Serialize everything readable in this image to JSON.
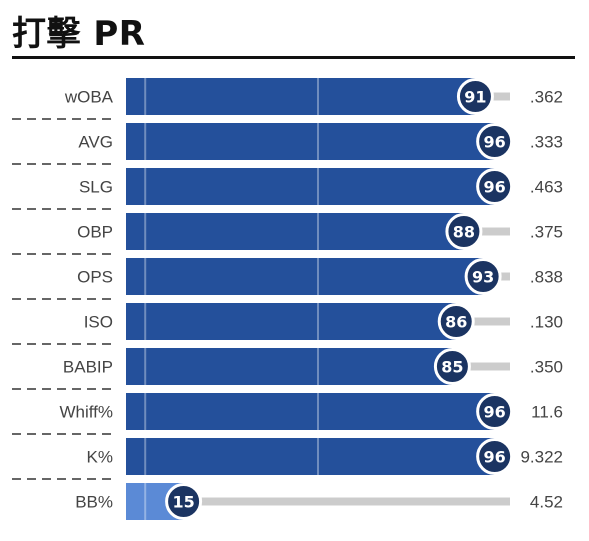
{
  "title": "打擊 PR",
  "chart_data": {
    "type": "bar",
    "orientation": "horizontal",
    "title": "打擊 PR",
    "xlim": [
      0,
      100
    ],
    "categories": [
      "wOBA",
      "AVG",
      "SLG",
      "OBP",
      "OPS",
      "ISO",
      "BABIP",
      "Whiff%",
      "K%",
      "BB%"
    ],
    "percentiles": [
      91,
      96,
      96,
      88,
      93,
      86,
      85,
      96,
      96,
      15
    ],
    "stat_values": [
      ".362",
      ".333",
      ".463",
      ".375",
      ".838",
      ".130",
      ".350",
      "11.6",
      "9.322",
      "4.52"
    ],
    "colors": {
      "bar_high": "#24509b",
      "bar_low": "#5b8ad6",
      "badge": "#1b3462",
      "track": "#cccccc",
      "divider": "#333333"
    }
  }
}
